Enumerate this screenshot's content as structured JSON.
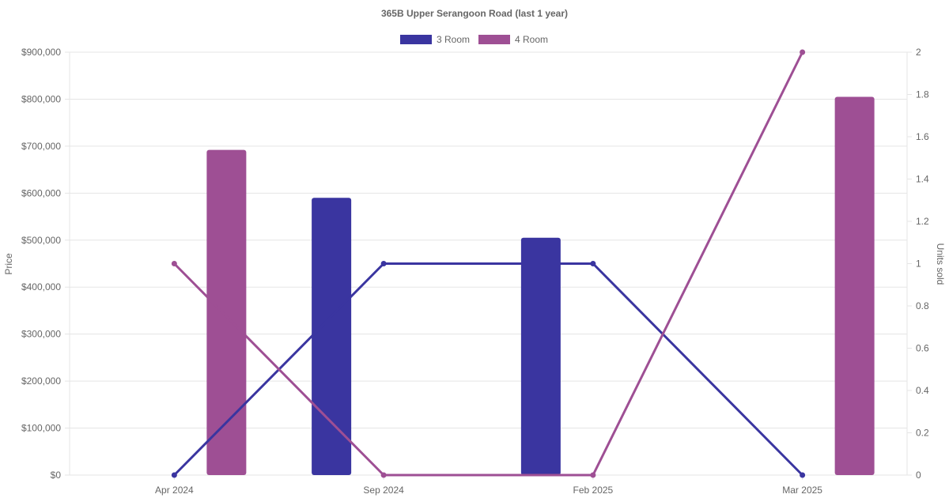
{
  "chart_data": {
    "type": "bar",
    "title": "365B Upper Serangoon Road (last 1 year)",
    "categories": [
      "Apr 2024",
      "Sep 2024",
      "Feb 2025",
      "Mar 2025"
    ],
    "y_left": {
      "label": "Price",
      "range": [
        0,
        900000
      ],
      "ticks": [
        "$0",
        "$100,000",
        "$200,000",
        "$300,000",
        "$400,000",
        "$500,000",
        "$600,000",
        "$700,000",
        "$800,000",
        "$900,000"
      ]
    },
    "y_right": {
      "label": "Units sold",
      "range": [
        0,
        2
      ],
      "ticks": [
        "0",
        "0.2",
        "0.4",
        "0.6",
        "0.8",
        "1",
        "1.2",
        "1.4",
        "1.6",
        "1.8",
        "2"
      ]
    },
    "grid": true,
    "legend_placement": "top-center",
    "series": [
      {
        "name": "3 Room",
        "color": "#3a35a0",
        "price": [
          null,
          590000,
          505000,
          null
        ],
        "units_sold": [
          0,
          1,
          1,
          0
        ]
      },
      {
        "name": "4 Room",
        "color": "#9e4f94",
        "price": [
          692000,
          null,
          null,
          805000
        ],
        "units_sold": [
          1,
          0,
          0,
          2
        ]
      }
    ]
  }
}
